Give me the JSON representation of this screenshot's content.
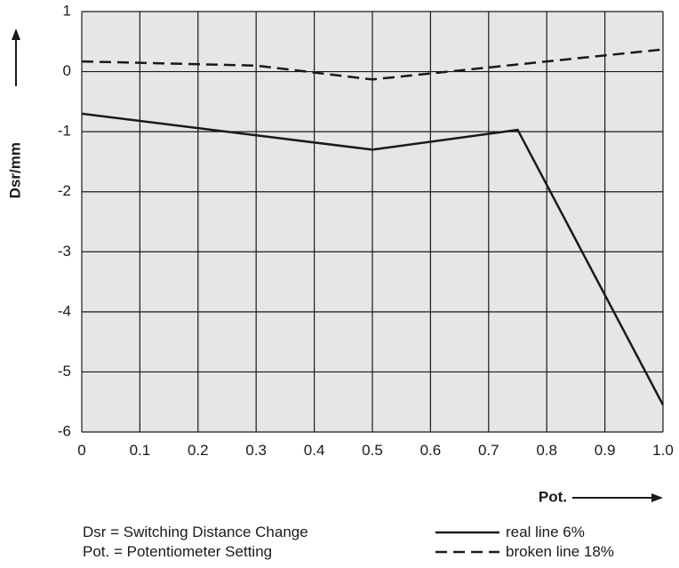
{
  "chart_data": {
    "type": "line",
    "xlabel": "Pot.",
    "ylabel": "Dsr/mm",
    "xlim": [
      0,
      1.0
    ],
    "ylim": [
      -6,
      1
    ],
    "x_ticks": [
      "0",
      "0.1",
      "0.2",
      "0.3",
      "0.4",
      "0.5",
      "0.6",
      "0.7",
      "0.8",
      "0.9",
      "1.0"
    ],
    "y_ticks": [
      "1",
      "0",
      "-1",
      "-2",
      "-3",
      "-4",
      "-5",
      "-6"
    ],
    "grid": true,
    "series": [
      {
        "name": "real line 6%",
        "style": "solid",
        "color": "#1a1a1a",
        "points": [
          [
            0,
            -0.7
          ],
          [
            0.5,
            -1.3
          ],
          [
            0.75,
            -0.97
          ],
          [
            1.0,
            -5.55
          ]
        ]
      },
      {
        "name": "broken line 18%",
        "style": "dashed",
        "color": "#1a1a1a",
        "points": [
          [
            0,
            0.17
          ],
          [
            0.3,
            0.1
          ],
          [
            0.5,
            -0.13
          ],
          [
            0.75,
            0.12
          ],
          [
            1.0,
            0.37
          ]
        ]
      }
    ]
  },
  "notes": {
    "line1": "Dsr = Switching Distance Change",
    "line2": "Pot. = Potentiometer Setting"
  },
  "colors": {
    "plot_background": "#e6e6e6",
    "grid": "#1a1a1a",
    "line": "#1a1a1a"
  }
}
